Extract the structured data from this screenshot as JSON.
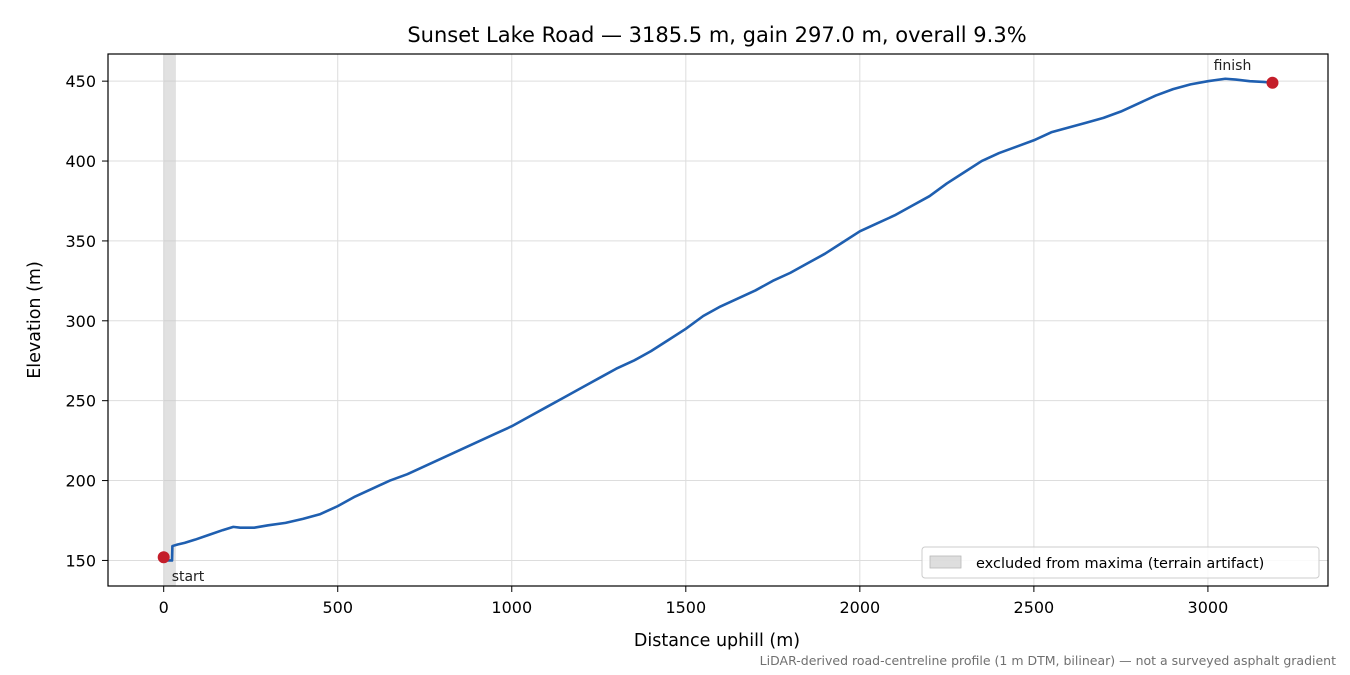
{
  "chart_data": {
    "type": "line",
    "title": "Sunset Lake Road — 3185.5 m, gain 297.0 m, overall 9.3%",
    "xlabel": "Distance uphill (m)",
    "ylabel": "Elevation (m)",
    "xlim": [
      -160,
      3345
    ],
    "ylim": [
      134,
      467
    ],
    "xticks": [
      0,
      500,
      1000,
      1500,
      2000,
      2500,
      3000
    ],
    "yticks": [
      150,
      200,
      250,
      300,
      350,
      400,
      450
    ],
    "grid": true,
    "legend_position": "lower-right",
    "excluded_region": {
      "x": [
        0,
        35
      ],
      "label": "excluded from maxima (terrain artifact)"
    },
    "series": [
      {
        "color": "#1f5fb0",
        "x": [
          0,
          10,
          24,
          25,
          40,
          60,
          90,
          130,
          170,
          200,
          220,
          260,
          300,
          350,
          400,
          450,
          500,
          550,
          600,
          650,
          700,
          750,
          800,
          850,
          900,
          950,
          1000,
          1050,
          1100,
          1150,
          1200,
          1250,
          1300,
          1350,
          1400,
          1450,
          1500,
          1550,
          1600,
          1650,
          1700,
          1750,
          1800,
          1850,
          1900,
          1950,
          2000,
          2050,
          2100,
          2150,
          2200,
          2250,
          2300,
          2350,
          2400,
          2450,
          2500,
          2550,
          2600,
          2650,
          2700,
          2750,
          2800,
          2850,
          2900,
          2950,
          3000,
          3050,
          3080,
          3120,
          3160,
          3185.5
        ],
        "y": [
          152,
          150,
          150,
          159,
          160,
          161,
          163,
          166,
          169,
          171,
          170.5,
          170.5,
          172,
          173.5,
          176,
          179,
          184,
          190,
          195,
          200,
          204,
          209,
          214,
          219,
          224,
          229,
          234,
          240,
          246,
          252,
          258,
          264,
          270,
          275,
          281,
          288,
          295,
          303,
          309,
          314,
          319,
          325,
          330,
          336,
          342,
          349,
          356,
          361,
          366,
          372,
          378,
          386,
          393,
          400,
          405,
          409,
          413,
          418,
          421,
          424,
          427,
          431,
          436,
          441,
          445,
          448,
          450,
          451.5,
          451,
          450,
          449.5,
          449
        ],
        "markers": [
          {
            "x": 0,
            "y": 152,
            "label": "start",
            "color": "#c41e2a"
          },
          {
            "x": 3185.5,
            "y": 449,
            "label": "finish",
            "color": "#c41e2a"
          }
        ]
      }
    ],
    "footnote": "LiDAR-derived road-centreline profile (1 m DTM, bilinear) — not a surveyed asphalt gradient"
  }
}
